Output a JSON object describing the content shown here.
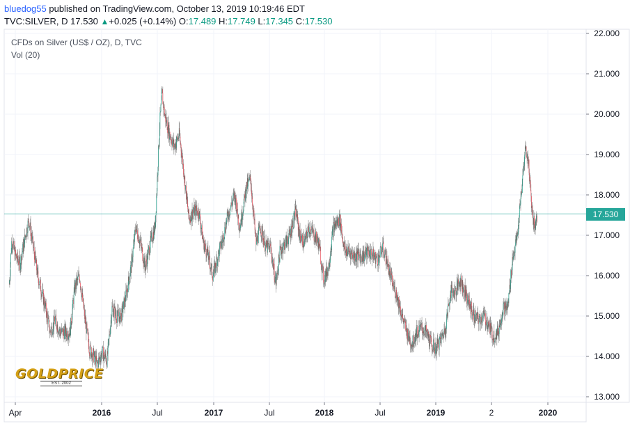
{
  "header": {
    "author": "bluedog55",
    "published_text": "published on TradingView.com, October 13, 2019 10:19:46 EDT",
    "symbol": "TVC:SILVER, D",
    "last": "17.530",
    "change": "+0.025 (+0.14%)",
    "o_label": "O:",
    "o": "17.489",
    "h_label": "H:",
    "h": "17.749",
    "l_label": "L:",
    "l": "17.345",
    "c_label": "C:",
    "c": "17.530"
  },
  "legend": {
    "title": "CFDs on Silver (US$ / OZ), D, TVC",
    "volume": "Vol (20)"
  },
  "price_label": "17.530",
  "logo": {
    "main": "GOLDPRICE",
    "sub": "EST. 2002"
  },
  "colors": {
    "up": "#089981",
    "down": "#f23645",
    "wick": "#8a8a8a",
    "last_line": "#26a69a",
    "grid": "#f0f3fa"
  },
  "chart_data": {
    "type": "line",
    "title": "CFDs on Silver (US$ / OZ), D, TVC",
    "x_ticks": [
      "Apr",
      "2016",
      "Jul",
      "2017",
      "Jul",
      "2018",
      "Jul",
      "2019",
      "2",
      "2020"
    ],
    "y_ticks": [
      "13.000",
      "14.000",
      "15.000",
      "16.000",
      "17.000",
      "18.000",
      "19.000",
      "20.000",
      "21.000",
      "22.000"
    ],
    "ylim": [
      13.0,
      22.0
    ],
    "last_price": 17.53,
    "series": [
      {
        "x": [
          "2015-03-17",
          "2015-03-25",
          "2015-04-05",
          "2015-04-20",
          "2015-05-05",
          "2015-05-18",
          "2015-06-01",
          "2015-06-15",
          "2015-07-01",
          "2015-07-15",
          "2015-07-24",
          "2015-08-10",
          "2015-08-24",
          "2015-09-10",
          "2015-09-25",
          "2015-10-10",
          "2015-10-25",
          "2015-11-10",
          "2015-11-25",
          "2015-12-10",
          "2015-12-20",
          "2016-01-05",
          "2016-01-20",
          "2016-02-05",
          "2016-02-20",
          "2016-03-05",
          "2016-03-20",
          "2016-04-05",
          "2016-04-20",
          "2016-05-05",
          "2016-05-20",
          "2016-06-05",
          "2016-06-20",
          "2016-07-05",
          "2016-07-12",
          "2016-07-20",
          "2016-08-05",
          "2016-08-20",
          "2016-09-05",
          "2016-09-20",
          "2016-10-05",
          "2016-10-20",
          "2016-11-05",
          "2016-11-20",
          "2016-12-05",
          "2016-12-20",
          "2017-01-05",
          "2017-01-20",
          "2017-02-05",
          "2017-02-27",
          "2017-03-15",
          "2017-04-05",
          "2017-04-18",
          "2017-05-05",
          "2017-05-20",
          "2017-06-05",
          "2017-06-20",
          "2017-07-07",
          "2017-07-20",
          "2017-08-05",
          "2017-08-20",
          "2017-09-08",
          "2017-09-20",
          "2017-10-05",
          "2017-10-20",
          "2017-11-05",
          "2017-11-20",
          "2017-12-05",
          "2017-12-20",
          "2018-01-05",
          "2018-01-25",
          "2018-02-10",
          "2018-02-25",
          "2018-03-10",
          "2018-03-25",
          "2018-04-11",
          "2018-04-25",
          "2018-05-10",
          "2018-05-25",
          "2018-06-10",
          "2018-06-25",
          "2018-07-10",
          "2018-07-25",
          "2018-08-10",
          "2018-08-25",
          "2018-09-10",
          "2018-09-25",
          "2018-10-10",
          "2018-10-25",
          "2018-11-10",
          "2018-11-25",
          "2018-12-10",
          "2018-12-25",
          "2019-01-10",
          "2019-01-25",
          "2019-02-10",
          "2019-02-25",
          "2019-03-10",
          "2019-03-25",
          "2019-04-10",
          "2019-04-25",
          "2019-05-10",
          "2019-05-25",
          "2019-06-10",
          "2019-06-25",
          "2019-07-10",
          "2019-07-25",
          "2019-08-10",
          "2019-08-25",
          "2019-09-04",
          "2019-09-15",
          "2019-09-25",
          "2019-10-04",
          "2019-10-11"
        ],
        "y": [
          15.8,
          16.9,
          16.5,
          16.3,
          16.9,
          17.4,
          16.7,
          16.0,
          15.5,
          15.0,
          14.6,
          14.9,
          14.6,
          14.6,
          14.6,
          15.7,
          16.0,
          15.0,
          14.2,
          14.0,
          13.8,
          14.1,
          13.9,
          15.2,
          15.0,
          15.0,
          15.5,
          16.2,
          17.2,
          16.8,
          16.2,
          16.8,
          17.2,
          19.8,
          20.5,
          20.0,
          19.5,
          19.2,
          19.5,
          18.5,
          17.4,
          17.6,
          17.6,
          16.8,
          16.5,
          16.0,
          16.5,
          16.9,
          17.5,
          18.0,
          17.2,
          18.2,
          18.4,
          16.8,
          17.2,
          16.7,
          16.7,
          15.8,
          16.6,
          16.8,
          17.0,
          17.6,
          17.0,
          16.8,
          17.2,
          17.0,
          16.8,
          15.9,
          16.2,
          17.2,
          17.4,
          16.6,
          16.6,
          16.5,
          16.5,
          16.5,
          16.6,
          16.5,
          16.4,
          16.7,
          16.3,
          15.8,
          15.5,
          15.0,
          14.6,
          14.3,
          14.6,
          14.7,
          14.6,
          14.3,
          14.2,
          14.4,
          14.7,
          15.6,
          15.6,
          15.9,
          15.6,
          15.3,
          15.0,
          14.9,
          15.0,
          14.8,
          14.5,
          14.6,
          15.2,
          15.2,
          16.4,
          17.0,
          18.3,
          19.2,
          18.7,
          17.6,
          17.2,
          17.53
        ]
      }
    ]
  }
}
